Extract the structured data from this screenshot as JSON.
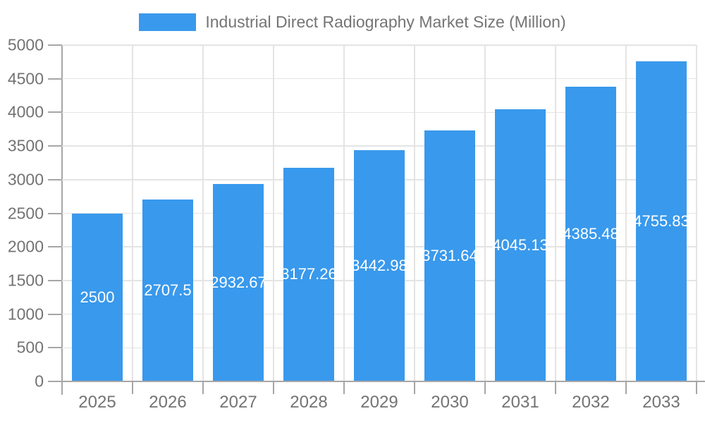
{
  "legend": {
    "label": "Industrial Direct Radiography Market Size (Million)"
  },
  "chart_data": {
    "type": "bar",
    "title": "Industrial Direct Radiography Market Size (Million)",
    "categories": [
      "2025",
      "2026",
      "2027",
      "2028",
      "2029",
      "2030",
      "2031",
      "2032",
      "2033"
    ],
    "values": [
      2500,
      2707.5,
      2932.67,
      3177.26,
      3442.98,
      3731.64,
      4045.13,
      4385.48,
      4755.83
    ],
    "bar_labels": [
      "2500",
      "2707.5",
      "2932.67",
      "3177.26",
      "3442.98",
      "3731.64",
      "4045.13",
      "4385.48",
      "4755.83"
    ],
    "xlabel": "",
    "ylabel": "",
    "ylim": [
      0,
      5000
    ],
    "yticks": [
      0,
      500,
      1000,
      1500,
      2000,
      2500,
      3000,
      3500,
      4000,
      4500,
      5000
    ],
    "grid": true,
    "legend_position": "top",
    "colors": {
      "bar": "#3999EC",
      "bar_label": "#FFFFFF",
      "axis": "#A6A6A6",
      "grid": "#E4E4E4",
      "text": "#737373"
    }
  }
}
